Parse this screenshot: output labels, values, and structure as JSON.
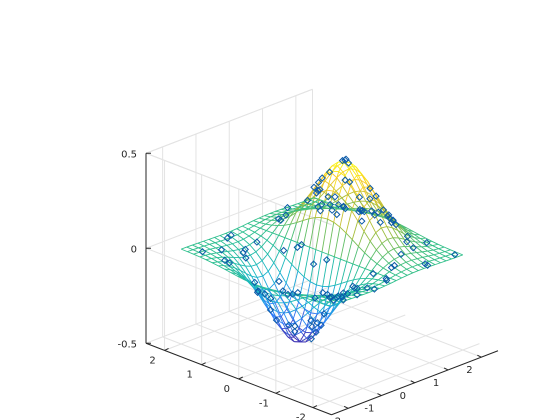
{
  "chart_data": {
    "type": "surface-mesh-3d",
    "title": "",
    "xlabel": "",
    "ylabel": "",
    "zlabel": "",
    "xlim": [
      -2.5,
      2.5
    ],
    "ylim": [
      -2.5,
      2.5
    ],
    "zlim": [
      -0.5,
      0.5
    ],
    "x_ticks": [
      "-2",
      "-1",
      "0",
      "1",
      "2"
    ],
    "y_ticks": [
      "-2",
      "-1",
      "0",
      "1",
      "2"
    ],
    "z_ticks": [
      "0.5",
      "0",
      "-0.5"
    ],
    "grid": true,
    "colormap": [
      "#3e26a8",
      "#2e7ffe",
      "#16b6c9",
      "#2dbf8b",
      "#a3bd3a",
      "#f9c72c",
      "#f9fb0e"
    ],
    "marker_color": "#0a5aa8",
    "surface": {
      "function": "x * exp(-x^2 - y^2)",
      "x_range": [
        -2,
        2
      ],
      "y_range": [
        -2,
        2
      ],
      "peak": {
        "x": 0.7,
        "y": 0,
        "z": 0.43
      },
      "trough": {
        "x": -0.7,
        "y": 0,
        "z": -0.43
      }
    },
    "sample_points": {
      "marker": "diamond",
      "count": 120,
      "function": "x * exp(-x^2 - y^2) with small noise",
      "x_range": [
        -2,
        2
      ],
      "y_range": [
        -2,
        2
      ]
    }
  }
}
